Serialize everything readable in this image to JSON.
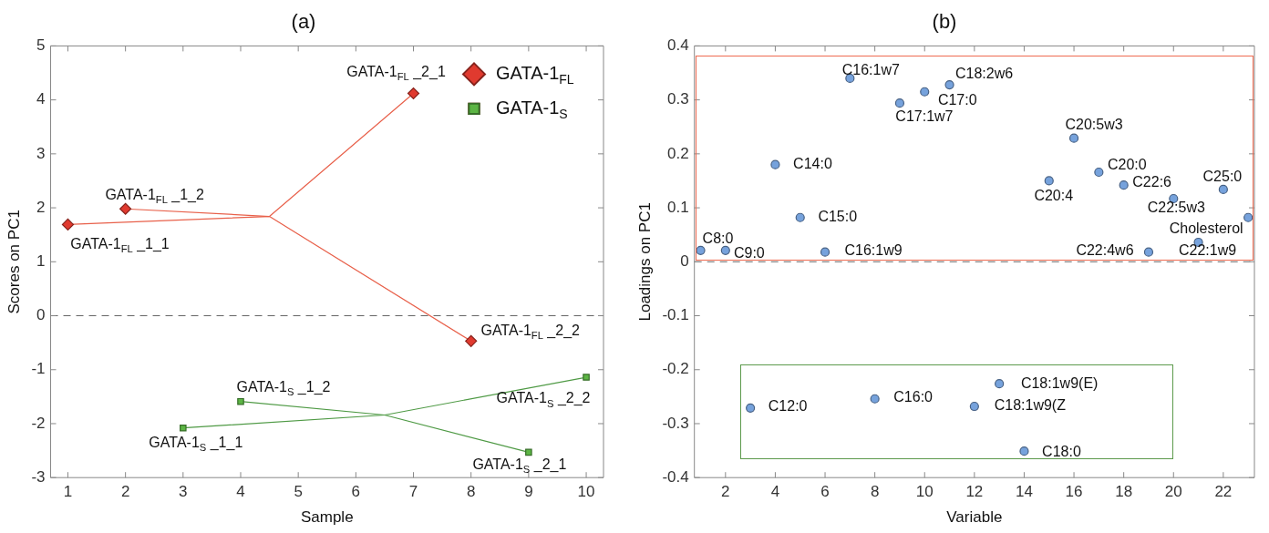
{
  "chart_data": [
    {
      "type": "scatter",
      "title": "(a)",
      "xlabel": "Sample",
      "ylabel": "Scores on PC1",
      "xlim": [
        0.7,
        10.3
      ],
      "ylim": [
        -3,
        5
      ],
      "xticks": [
        1,
        2,
        3,
        4,
        5,
        6,
        7,
        8,
        9,
        10
      ],
      "yticks": [
        -3,
        -2,
        -1,
        0,
        1,
        2,
        3,
        4,
        5
      ],
      "legend": "top right",
      "series": [
        {
          "type": "line",
          "color": "#e8604a",
          "marker": "none",
          "x": [
            1,
            4.5,
            7
          ],
          "values": [
            1.69,
            1.84,
            4.12
          ]
        },
        {
          "type": "line",
          "color": "#e8604a",
          "marker": "none",
          "x": [
            2,
            4.5,
            8
          ],
          "values": [
            1.98,
            1.84,
            -0.47
          ]
        },
        {
          "type": "line",
          "color": "#4f9a45",
          "marker": "none",
          "x": [
            3,
            6.5,
            10
          ],
          "values": [
            -2.08,
            -1.84,
            -1.14
          ]
        },
        {
          "type": "line",
          "color": "#4f9a45",
          "marker": "none",
          "x": [
            4,
            6.5,
            9
          ],
          "values": [
            -1.59,
            -1.84,
            -2.53
          ]
        },
        {
          "type": "scatter",
          "name": "GATA-1$_{FL}$",
          "color": "#e03a2f",
          "marker": "diamond",
          "x": [
            1,
            2,
            7,
            8
          ],
          "values": [
            1.69,
            1.98,
            4.12,
            -0.47
          ]
        },
        {
          "type": "scatter",
          "name": "GATA-1$_{S}$",
          "color": "#5cb544",
          "marker": "square",
          "x": [
            3,
            4,
            9,
            10
          ],
          "values": [
            -2.08,
            -1.59,
            -2.53,
            -1.14
          ]
        }
      ],
      "ref_lines": [
        {
          "axis": "y",
          "value": 0,
          "color": "#666666",
          "line_style": "dashed"
        }
      ],
      "annotations": [
        {
          "text": "GATA-1$_{FL}$ _2_1",
          "x": 7,
          "y": 4.12
        },
        {
          "text": "GATA-1$_{FL}$ _1_2",
          "x": 2,
          "y": 1.98
        },
        {
          "text": "GATA-1$_{FL}$ _1_1",
          "x": 1,
          "y": 1.69
        },
        {
          "text": "GATA-1$_{FL}$ _2_2",
          "x": 8,
          "y": -0.47
        },
        {
          "text": "GATA-1$_{S}$ _1_2",
          "x": 4,
          "y": -1.59
        },
        {
          "text": "GATA-1$_{S}$ _2_2",
          "x": 10,
          "y": -1.14
        },
        {
          "text": "GATA-1$_{S}$ _1_1",
          "x": 3,
          "y": -2.08
        },
        {
          "text": "GATA-1$_{S}$ _2_1",
          "x": 9,
          "y": -2.53
        }
      ]
    },
    {
      "type": "scatter",
      "title": "(b)",
      "xlabel": "Variable",
      "ylabel": "Loadings on PC1",
      "xlim": [
        0.75,
        23.25
      ],
      "ylim": [
        -0.4,
        0.4
      ],
      "xticks": [
        2,
        4,
        6,
        8,
        10,
        12,
        14,
        16,
        18,
        20,
        22
      ],
      "yticks": [
        -0.4,
        -0.3,
        -0.2,
        -0.1,
        0,
        0.1,
        0.2,
        0.3,
        0.4
      ],
      "marker": "circle",
      "series": [
        {
          "color": "#76a2dc",
          "x": [
            1,
            2,
            3,
            4,
            5,
            6,
            7,
            8,
            9,
            10,
            11,
            12,
            13,
            14,
            15,
            16,
            17,
            18,
            19,
            20,
            21,
            22,
            23
          ],
          "values": [
            0.021,
            0.021,
            -0.271,
            0.18,
            0.082,
            0.018,
            0.34,
            -0.254,
            0.294,
            0.315,
            0.328,
            -0.268,
            -0.226,
            -0.351,
            0.15,
            0.229,
            0.166,
            0.142,
            0.018,
            0.117,
            0.036,
            0.134,
            0.082
          ]
        }
      ],
      "ref_lines": [
        {
          "axis": "y",
          "value": 0,
          "color": "#666666",
          "line_style": "dashed"
        }
      ],
      "annotations": [
        {
          "text": "C8:0",
          "x": 1,
          "y": 0.021
        },
        {
          "text": "C9:0",
          "x": 2,
          "y": 0.021
        },
        {
          "text": "C12:0",
          "x": 3,
          "y": -0.271
        },
        {
          "text": "C14:0",
          "x": 4,
          "y": 0.18
        },
        {
          "text": "C15:0",
          "x": 5,
          "y": 0.082
        },
        {
          "text": "C16:1w9",
          "x": 6,
          "y": 0.018
        },
        {
          "text": "C16:1w7",
          "x": 7,
          "y": 0.34
        },
        {
          "text": "C16:0",
          "x": 8,
          "y": -0.254
        },
        {
          "text": "C17:1w7",
          "x": 9,
          "y": 0.294
        },
        {
          "text": "C17:0",
          "x": 10,
          "y": 0.315
        },
        {
          "text": "C18:2w6",
          "x": 11,
          "y": 0.328
        },
        {
          "text": "C18:1w9(Z",
          "x": 12,
          "y": -0.268
        },
        {
          "text": "C18:1w9(E)",
          "x": 13,
          "y": -0.226
        },
        {
          "text": "C18:0",
          "x": 14,
          "y": -0.351
        },
        {
          "text": "C20:4",
          "x": 15,
          "y": 0.15
        },
        {
          "text": "C20:5w3",
          "x": 16,
          "y": 0.229
        },
        {
          "text": "C20:0",
          "x": 17,
          "y": 0.166
        },
        {
          "text": "C22:6",
          "x": 18,
          "y": 0.142
        },
        {
          "text": "C22:4w6",
          "x": 19,
          "y": 0.018
        },
        {
          "text": "C22:5w3",
          "x": 20,
          "y": 0.117
        },
        {
          "text": "Cholesterol",
          "x": 23,
          "y": 0.082
        },
        {
          "text": "C22:1w9",
          "x": 21,
          "y": 0.036
        },
        {
          "text": "C25:0",
          "x": 22,
          "y": 0.134
        }
      ]
    }
  ]
}
